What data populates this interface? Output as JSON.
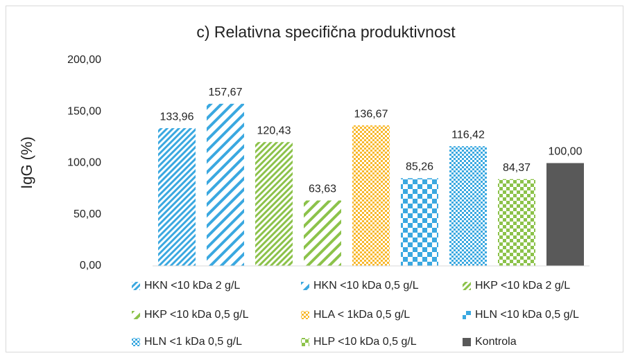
{
  "chart_data": {
    "type": "bar",
    "title": "c) Relativna specifična produktivnost",
    "y_label": "IgG (%)",
    "categories": [
      null
    ],
    "series": [
      {
        "name": "HKN <10 kDa 2 g/L",
        "color": "#3aa8e0",
        "pattern": "diagonal-dense",
        "values": [
          133.96
        ],
        "value_labels": [
          "133,96"
        ]
      },
      {
        "name": "HKN <10 kDa 0,5 g/L",
        "color": "#3aa8e0",
        "pattern": "diagonal-wide",
        "values": [
          157.67
        ],
        "value_labels": [
          "157,67"
        ]
      },
      {
        "name": "HKP <10 kDa 2 g/L",
        "color": "#8cc24a",
        "pattern": "diagonal-dense",
        "values": [
          120.43
        ],
        "value_labels": [
          "120,43"
        ]
      },
      {
        "name": "HKP <10 kDa 0,5 g/L",
        "color": "#8cc24a",
        "pattern": "diagonal-wide",
        "values": [
          63.63
        ],
        "value_labels": [
          "63,63"
        ]
      },
      {
        "name": "HLA < 1kDa 0,5 g/L",
        "color": "#f8b82c",
        "pattern": "checker-small",
        "values": [
          136.67
        ],
        "value_labels": [
          "136,67"
        ]
      },
      {
        "name": "HLN <10 kDa 0,5 g/L",
        "color": "#3aa8e0",
        "pattern": "checker-large",
        "values": [
          85.26
        ],
        "value_labels": [
          "85,26"
        ]
      },
      {
        "name": "HLN <1 kDa 0,5 g/L",
        "color": "#3aa8e0",
        "pattern": "checker-small",
        "values": [
          116.42
        ],
        "value_labels": [
          "116,42"
        ]
      },
      {
        "name": "HLP <10 kDa 0,5 g/L",
        "color": "#8cc24a",
        "pattern": "checker-medium",
        "values": [
          84.37
        ],
        "value_labels": [
          "84,37"
        ]
      },
      {
        "name": "Kontrola",
        "color": "#595959",
        "pattern": "solid",
        "values": [
          100
        ],
        "value_labels": [
          "100,00"
        ]
      }
    ],
    "ylim": [
      0,
      200
    ],
    "yticks": [
      {
        "value": 0,
        "label": "0,00"
      },
      {
        "value": 50,
        "label": "50,00"
      },
      {
        "value": 100,
        "label": "100,00"
      },
      {
        "value": 150,
        "label": "150,00"
      },
      {
        "value": 200,
        "label": "200,00"
      }
    ],
    "grid": false,
    "legend": "bottom"
  }
}
